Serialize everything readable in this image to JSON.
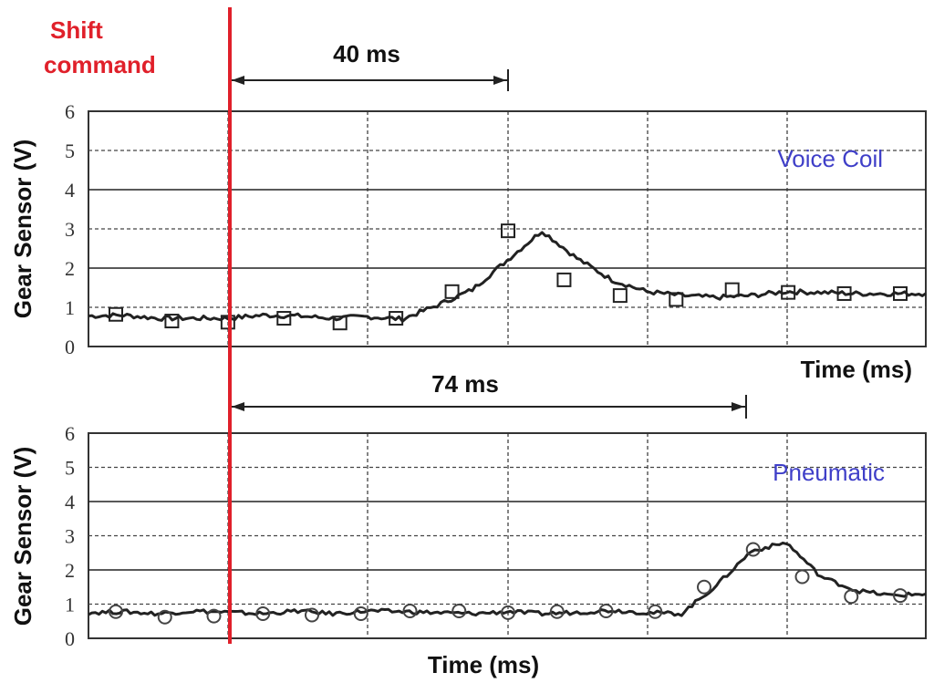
{
  "shift_label": [
    "Shift",
    "command"
  ],
  "annotations": {
    "top_interval": "40 ms",
    "bottom_interval": "74 ms"
  },
  "colors": {
    "shift_line": "#e0202a",
    "series_label": "#3f3fc8",
    "trace": "#222222"
  },
  "chart_data": [
    {
      "type": "line",
      "series": [
        {
          "name": "Voice Coil",
          "marker": "square",
          "x": [
            0,
            0.25,
            0.5,
            0.75,
            1.0,
            1.25,
            1.5,
            1.75,
            2.0,
            2.25,
            2.5,
            2.75,
            3.0,
            3.25,
            3.5,
            3.75,
            4.0,
            4.25,
            4.5,
            4.75,
            5.0,
            5.25,
            5.5,
            5.75,
            6.0
          ],
          "values": [
            0.78,
            0.8,
            0.72,
            0.72,
            0.72,
            0.8,
            0.78,
            0.72,
            0.76,
            0.7,
            1.05,
            1.45,
            2.2,
            2.95,
            2.25,
            1.7,
            1.4,
            1.3,
            1.25,
            1.3,
            1.4,
            1.38,
            1.35,
            1.35,
            1.35
          ]
        }
      ],
      "marker_values": [
        0.82,
        0.65,
        0.62,
        0.72,
        0.6,
        0.72,
        1.4,
        2.95,
        1.7,
        1.3,
        1.2,
        1.45,
        1.38,
        1.35,
        1.35
      ],
      "ylabel": "Gear Sensor (V)",
      "xlabel": "Time (ms)",
      "yticks": [
        "0",
        "1",
        "2",
        "3",
        "4",
        "5",
        "6"
      ],
      "ylim": [
        0,
        6
      ],
      "grid": true
    },
    {
      "type": "line",
      "series": [
        {
          "name": "Pneumatic",
          "marker": "circle",
          "x": [
            0,
            0.25,
            0.5,
            0.75,
            1.0,
            1.25,
            1.5,
            1.75,
            2.0,
            2.25,
            2.5,
            2.75,
            3.0,
            3.25,
            3.5,
            3.75,
            4.0,
            4.25,
            4.5,
            4.75,
            5.0,
            5.25,
            5.5,
            5.75,
            6.0
          ],
          "values": [
            0.75,
            0.78,
            0.72,
            0.8,
            0.76,
            0.72,
            0.8,
            0.72,
            0.8,
            0.78,
            0.75,
            0.72,
            0.78,
            0.72,
            0.76,
            0.82,
            0.75,
            0.72,
            1.55,
            2.55,
            2.8,
            1.8,
            1.4,
            1.25,
            1.3
          ]
        }
      ],
      "marker_values": [
        0.78,
        0.62,
        0.65,
        0.72,
        0.68,
        0.72,
        0.8,
        0.8,
        0.75,
        0.78,
        0.8,
        0.78,
        1.5,
        2.6,
        1.8,
        1.22,
        1.25
      ],
      "ylabel": "Gear Sensor (V)",
      "xlabel": "Time (ms)",
      "yticks": [
        "0",
        "1",
        "2",
        "3",
        "4",
        "5",
        "6"
      ],
      "ylim": [
        0,
        6
      ],
      "grid": true
    }
  ]
}
